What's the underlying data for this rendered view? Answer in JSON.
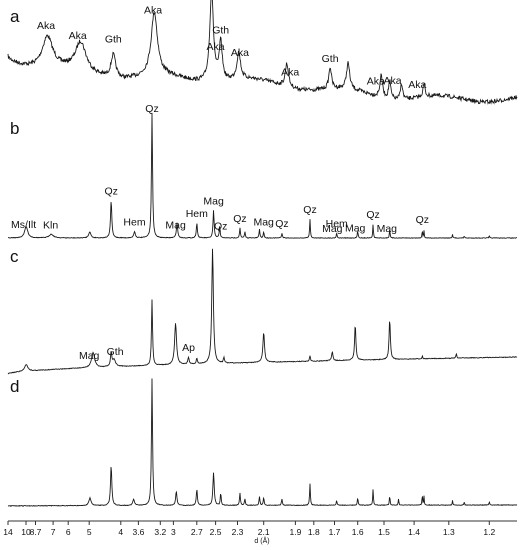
{
  "chart_data": {
    "type": "line",
    "title": "",
    "xlabel": "d (Å)",
    "ylabel": "",
    "x_axis": {
      "scale": "reciprocal",
      "xlim": [
        14,
        1.14
      ],
      "ticks": [
        14,
        10,
        8.7,
        7,
        6,
        5,
        4,
        3.6,
        3.2,
        3,
        2.7,
        2.5,
        2.3,
        2.1,
        1.9,
        1.8,
        1.7,
        1.6,
        1.5,
        1.4,
        1.3,
        1.2
      ],
      "tick_labels": [
        "14",
        "10",
        "8.7",
        "7",
        "6",
        "5",
        "4",
        "3.6",
        "3.2",
        "3",
        "2.7",
        "2.5",
        "2.3",
        "2.1",
        "1.9",
        "1.8",
        "1.7",
        "1.6",
        "1.5",
        "1.4",
        "1.3",
        "1.2"
      ]
    },
    "grid": false,
    "legend": "none",
    "colors": {
      "trace": "#1a1a1a",
      "axis": "#333333",
      "text": "#111111"
    },
    "series": [
      {
        "panel": "a",
        "peaks": [
          {
            "d": 7.47,
            "rel": 0.35,
            "w": 0.1
          },
          {
            "d": 5.36,
            "rel": 0.32,
            "w": 0.1
          },
          {
            "d": 4.2,
            "rel": 0.26,
            "w": 0.045
          },
          {
            "d": 3.3,
            "rel": 0.7,
            "w": 0.06
          },
          {
            "d": 2.54,
            "rel": 1.0,
            "w": 0.035
          },
          {
            "d": 2.45,
            "rel": 0.42,
            "w": 0.03
          },
          {
            "d": 2.29,
            "rel": 0.3,
            "w": 0.035
          },
          {
            "d": 1.95,
            "rel": 0.26,
            "w": 0.03
          },
          {
            "d": 1.72,
            "rel": 0.24,
            "w": 0.025
          },
          {
            "d": 1.64,
            "rel": 0.29,
            "w": 0.03
          },
          {
            "d": 1.51,
            "rel": 0.24,
            "w": 0.025
          },
          {
            "d": 1.48,
            "rel": 0.2,
            "w": 0.02
          },
          {
            "d": 1.44,
            "rel": 0.18,
            "w": 0.02
          },
          {
            "d": 1.37,
            "rel": 0.14,
            "w": 0.02
          }
        ],
        "labels": [
          {
            "text": "Aka",
            "d": 7.6
          },
          {
            "text": "Aka",
            "d": 5.5
          },
          {
            "text": "Gth",
            "d": 4.2
          },
          {
            "text": "Aka",
            "d": 3.32
          },
          {
            "text": "Aka",
            "d": 2.5
          },
          {
            "text": "Gth",
            "d": 2.45
          },
          {
            "text": "Aka",
            "d": 2.28
          },
          {
            "text": "Aka",
            "d": 1.93
          },
          {
            "text": "Gth",
            "d": 1.72
          },
          {
            "text": "Aka",
            "d": 1.53
          },
          {
            "text": "Aka",
            "d": 1.47
          },
          {
            "text": "Aka",
            "d": 1.39
          }
        ]
      },
      {
        "panel": "b",
        "peaks": [
          {
            "d": 9.98,
            "rel": 0.09,
            "w": 0.03
          },
          {
            "d": 7.15,
            "rel": 0.03,
            "w": 0.04
          },
          {
            "d": 4.98,
            "rel": 0.05,
            "w": 0.02
          },
          {
            "d": 4.26,
            "rel": 0.3,
            "w": 0.012
          },
          {
            "d": 3.68,
            "rel": 0.05,
            "w": 0.015
          },
          {
            "d": 3.34,
            "rel": 1.0,
            "w": 0.01
          },
          {
            "d": 2.95,
            "rel": 0.12,
            "w": 0.012
          },
          {
            "d": 2.7,
            "rel": 0.12,
            "w": 0.01
          },
          {
            "d": 2.52,
            "rel": 0.22,
            "w": 0.01
          },
          {
            "d": 2.46,
            "rel": 0.1,
            "w": 0.008
          },
          {
            "d": 2.28,
            "rel": 0.08,
            "w": 0.008
          },
          {
            "d": 2.24,
            "rel": 0.05,
            "w": 0.008
          },
          {
            "d": 2.13,
            "rel": 0.07,
            "w": 0.008
          },
          {
            "d": 2.1,
            "rel": 0.05,
            "w": 0.008
          },
          {
            "d": 1.98,
            "rel": 0.04,
            "w": 0.008
          },
          {
            "d": 1.82,
            "rel": 0.15,
            "w": 0.007
          },
          {
            "d": 1.69,
            "rel": 0.04,
            "w": 0.007
          },
          {
            "d": 1.6,
            "rel": 0.06,
            "w": 0.007
          },
          {
            "d": 1.54,
            "rel": 0.11,
            "w": 0.006
          },
          {
            "d": 1.48,
            "rel": 0.07,
            "w": 0.006
          },
          {
            "d": 1.375,
            "rel": 0.07,
            "w": 0.005
          },
          {
            "d": 1.37,
            "rel": 0.06,
            "w": 0.005
          },
          {
            "d": 1.29,
            "rel": 0.03,
            "w": 0.005
          },
          {
            "d": 1.26,
            "rel": 0.02,
            "w": 0.005
          },
          {
            "d": 1.2,
            "rel": 0.02,
            "w": 0.005
          }
        ],
        "labels": [
          {
            "text": "Ms/Ilt",
            "d": 10.4
          },
          {
            "text": "Kln",
            "d": 7.2
          },
          {
            "text": "Qz",
            "d": 4.26
          },
          {
            "text": "Hem",
            "d": 3.68
          },
          {
            "text": "Qz",
            "d": 3.34
          },
          {
            "text": "Mag",
            "d": 2.97
          },
          {
            "text": "Hem",
            "d": 2.7
          },
          {
            "text": "Mag",
            "d": 2.52
          },
          {
            "text": "Qz",
            "d": 2.45
          },
          {
            "text": "Qz",
            "d": 2.28
          },
          {
            "text": "Mag",
            "d": 2.1
          },
          {
            "text": "Qz",
            "d": 1.98
          },
          {
            "text": "Qz",
            "d": 1.82
          },
          {
            "text": "Mag",
            "d": 1.71
          },
          {
            "text": "Hem",
            "d": 1.69
          },
          {
            "text": "Mag",
            "d": 1.61
          },
          {
            "text": "Qz",
            "d": 1.54
          },
          {
            "text": "Mag",
            "d": 1.49
          },
          {
            "text": "Qz",
            "d": 1.375
          }
        ]
      },
      {
        "panel": "c",
        "peaks": [
          {
            "d": 9.98,
            "rel": 0.06,
            "w": 0.03
          },
          {
            "d": 4.85,
            "rel": 0.13,
            "w": 0.03
          },
          {
            "d": 4.26,
            "rel": 0.12,
            "w": 0.012
          },
          {
            "d": 4.18,
            "rel": 0.06,
            "w": 0.03
          },
          {
            "d": 3.34,
            "rel": 0.57,
            "w": 0.01
          },
          {
            "d": 2.97,
            "rel": 0.36,
            "w": 0.018
          },
          {
            "d": 2.8,
            "rel": 0.06,
            "w": 0.012
          },
          {
            "d": 2.7,
            "rel": 0.05,
            "w": 0.01
          },
          {
            "d": 2.53,
            "rel": 1.0,
            "w": 0.015
          },
          {
            "d": 2.42,
            "rel": 0.05,
            "w": 0.01
          },
          {
            "d": 2.1,
            "rel": 0.26,
            "w": 0.015
          },
          {
            "d": 1.82,
            "rel": 0.05,
            "w": 0.008
          },
          {
            "d": 1.71,
            "rel": 0.08,
            "w": 0.012
          },
          {
            "d": 1.61,
            "rel": 0.31,
            "w": 0.012
          },
          {
            "d": 1.48,
            "rel": 0.35,
            "w": 0.012
          },
          {
            "d": 1.375,
            "rel": 0.03,
            "w": 0.006
          },
          {
            "d": 1.28,
            "rel": 0.04,
            "w": 0.008
          }
        ],
        "labels": [
          {
            "text": "Mag",
            "d": 5.0
          },
          {
            "text": "Gth",
            "d": 4.15
          },
          {
            "text": "Ap",
            "d": 2.8
          }
        ]
      },
      {
        "panel": "d",
        "peaks": [
          {
            "d": 4.97,
            "rel": 0.06,
            "w": 0.02
          },
          {
            "d": 4.26,
            "rel": 0.32,
            "w": 0.012
          },
          {
            "d": 3.7,
            "rel": 0.05,
            "w": 0.015
          },
          {
            "d": 3.34,
            "rel": 1.0,
            "w": 0.01
          },
          {
            "d": 2.96,
            "rel": 0.11,
            "w": 0.012
          },
          {
            "d": 2.7,
            "rel": 0.13,
            "w": 0.01
          },
          {
            "d": 2.52,
            "rel": 0.26,
            "w": 0.012
          },
          {
            "d": 2.45,
            "rel": 0.1,
            "w": 0.008
          },
          {
            "d": 2.28,
            "rel": 0.1,
            "w": 0.008
          },
          {
            "d": 2.24,
            "rel": 0.05,
            "w": 0.008
          },
          {
            "d": 2.13,
            "rel": 0.07,
            "w": 0.008
          },
          {
            "d": 2.1,
            "rel": 0.06,
            "w": 0.008
          },
          {
            "d": 1.98,
            "rel": 0.05,
            "w": 0.008
          },
          {
            "d": 1.82,
            "rel": 0.17,
            "w": 0.007
          },
          {
            "d": 1.69,
            "rel": 0.04,
            "w": 0.007
          },
          {
            "d": 1.6,
            "rel": 0.06,
            "w": 0.007
          },
          {
            "d": 1.54,
            "rel": 0.13,
            "w": 0.006
          },
          {
            "d": 1.48,
            "rel": 0.08,
            "w": 0.006
          },
          {
            "d": 1.45,
            "rel": 0.05,
            "w": 0.006
          },
          {
            "d": 1.375,
            "rel": 0.09,
            "w": 0.005
          },
          {
            "d": 1.37,
            "rel": 0.07,
            "w": 0.005
          },
          {
            "d": 1.29,
            "rel": 0.04,
            "w": 0.005
          },
          {
            "d": 1.26,
            "rel": 0.03,
            "w": 0.005
          },
          {
            "d": 1.2,
            "rel": 0.03,
            "w": 0.005
          }
        ],
        "labels": []
      }
    ]
  }
}
